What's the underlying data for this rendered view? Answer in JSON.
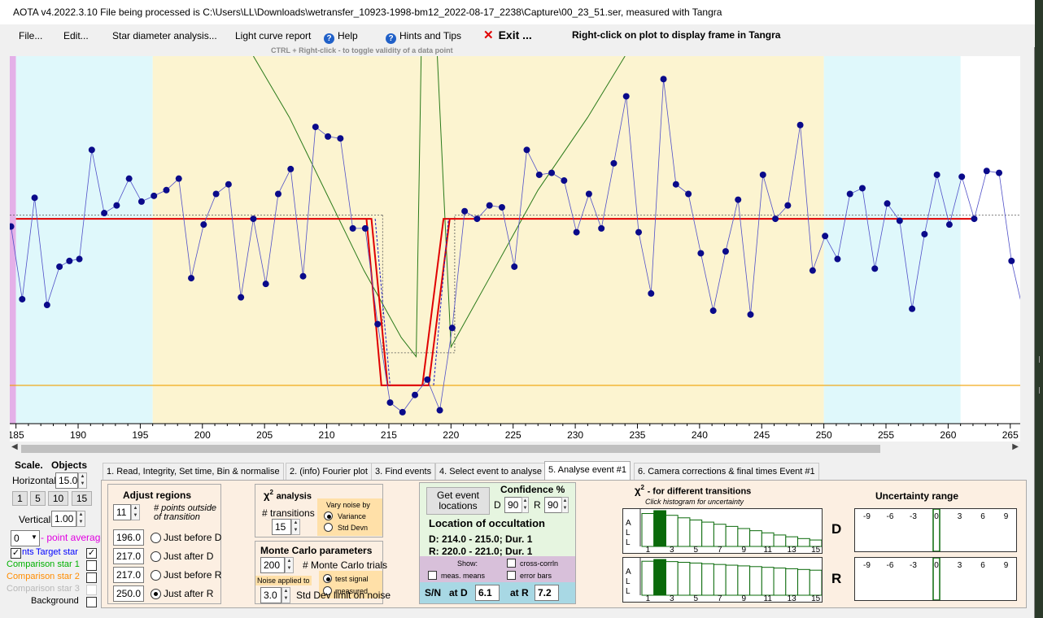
{
  "title": "AOTA v4.2022.3.10    File being processed is C:\\Users\\LL\\Downloads\\wetransfer_10923-1998-bm12_2022-08-17_2238\\Capture\\00_23_51.ser, measured with Tangra",
  "menu": {
    "file": "File...",
    "edit": "Edit...",
    "star_diameter": "Star diameter analysis...",
    "light_curve_report": "Light curve report",
    "help": "Help",
    "hints": "Hints and Tips",
    "exit": "Exit ...",
    "hint_right_click": "Right-click on plot to display frame in Tangra",
    "ctrl_hint": "CTRL + Right-click  -  to toggle validity of a data point"
  },
  "chart_data": {
    "type": "line",
    "x_ticks": [
      "185",
      "190",
      "195",
      "200",
      "205",
      "210",
      "215",
      "220",
      "225",
      "230",
      "235",
      "240",
      "245",
      "250",
      "255",
      "260",
      "265"
    ],
    "xlim": [
      184.5,
      265.8
    ],
    "regions": [
      {
        "from": 184.5,
        "to": 185.0,
        "color": "#e4b0e8"
      },
      {
        "from": 185.0,
        "to": 196.0,
        "color": "#dff8fb"
      },
      {
        "from": 196.0,
        "to": 250.0,
        "color": "#fcf4d0"
      },
      {
        "from": 250.0,
        "to": 261.0,
        "color": "#dff8fb"
      }
    ],
    "points": [
      [
        184.6,
        0.83
      ],
      [
        185.5,
        0.45
      ],
      [
        186.5,
        0.98
      ],
      [
        187.5,
        0.42
      ],
      [
        188.5,
        0.62
      ],
      [
        189.3,
        0.65
      ],
      [
        190.1,
        0.66
      ],
      [
        191.1,
        1.23
      ],
      [
        192.1,
        0.9
      ],
      [
        193.1,
        0.94
      ],
      [
        194.1,
        1.08
      ],
      [
        195.1,
        0.96
      ],
      [
        196.1,
        0.99
      ],
      [
        197.1,
        1.02
      ],
      [
        198.1,
        1.08
      ],
      [
        199.1,
        0.56
      ],
      [
        200.1,
        0.84
      ],
      [
        201.1,
        1.0
      ],
      [
        202.1,
        1.05
      ],
      [
        203.1,
        0.46
      ],
      [
        204.1,
        0.87
      ],
      [
        205.1,
        0.53
      ],
      [
        206.1,
        1.0
      ],
      [
        207.1,
        1.13
      ],
      [
        208.1,
        0.57
      ],
      [
        209.1,
        1.35
      ],
      [
        210.1,
        1.3
      ],
      [
        211.1,
        1.29
      ],
      [
        212.1,
        0.82
      ],
      [
        213.1,
        0.82
      ],
      [
        214.1,
        0.32
      ],
      [
        215.1,
        -0.09
      ],
      [
        216.1,
        -0.14
      ],
      [
        217.1,
        -0.05
      ],
      [
        218.1,
        0.03
      ],
      [
        219.1,
        -0.13
      ],
      [
        220.1,
        0.3
      ],
      [
        221.1,
        0.91
      ],
      [
        222.1,
        0.87
      ],
      [
        223.1,
        0.94
      ],
      [
        224.1,
        0.93
      ],
      [
        225.1,
        0.62
      ],
      [
        226.1,
        1.23
      ],
      [
        227.1,
        1.1
      ],
      [
        228.1,
        1.11
      ],
      [
        229.1,
        1.07
      ],
      [
        230.1,
        0.8
      ],
      [
        231.1,
        1.0
      ],
      [
        232.1,
        0.82
      ],
      [
        233.1,
        1.16
      ],
      [
        234.1,
        1.51
      ],
      [
        235.1,
        0.8
      ],
      [
        236.1,
        0.48
      ],
      [
        237.1,
        1.6
      ],
      [
        238.1,
        1.05
      ],
      [
        239.1,
        1.0
      ],
      [
        240.1,
        0.69
      ],
      [
        241.1,
        0.39
      ],
      [
        242.1,
        0.7
      ],
      [
        243.1,
        0.97
      ],
      [
        244.1,
        0.37
      ],
      [
        245.1,
        1.1
      ],
      [
        246.1,
        0.87
      ],
      [
        247.1,
        0.94
      ],
      [
        248.1,
        1.36
      ],
      [
        249.1,
        0.6
      ],
      [
        250.1,
        0.78
      ],
      [
        251.1,
        0.66
      ],
      [
        252.1,
        1.0
      ],
      [
        253.1,
        1.03
      ],
      [
        254.1,
        0.61
      ],
      [
        255.1,
        0.95
      ],
      [
        256.1,
        0.86
      ],
      [
        257.1,
        0.4
      ],
      [
        258.1,
        0.79
      ],
      [
        259.1,
        1.1
      ],
      [
        260.1,
        0.84
      ],
      [
        261.1,
        1.09
      ],
      [
        262.1,
        0.87
      ],
      [
        263.1,
        1.12
      ],
      [
        264.1,
        1.11
      ],
      [
        265.1,
        0.65
      ],
      [
        266.1,
        0.37
      ]
    ],
    "baseline": 0.87,
    "bottom_level": 0.0,
    "d_edge": 214.5,
    "r_edge": 220.5,
    "ylim": [
      -0.2,
      1.72
    ]
  },
  "tabs": [
    "1. Read, Integrity, Set time, Bin & normalise",
    "2. (info)  Fourier plot",
    "3. Find events",
    "4. Select event to analyse",
    "5. Analyse event #1",
    "6. Camera corrections & final times Event #1"
  ],
  "left": {
    "scale": "Scale.",
    "objects": "Objects",
    "horizontal": "Horizontal",
    "horizontal_value": "15.0",
    "scale_buttons": [
      "1",
      "5",
      "10",
      "15"
    ],
    "vertical": "Vertical",
    "vertical_value": "1.00",
    "avg_value": "0",
    "point_average": "- point average",
    "target_star": "Target star",
    "target_prefix": "nts",
    "comp1": "Comparison star 1",
    "comp2": "Comparison star 2",
    "comp3": "Comparison star 3",
    "background": "Background",
    "comp1_color": "#00b000",
    "comp2_color": "#ff8c00",
    "target_color": "#0000ff",
    "point_average_color": "#e000e0"
  },
  "adjust": {
    "title": "Adjust regions",
    "points_value": "11",
    "points_label": "# points outside of transition",
    "rows": [
      {
        "value": "196.0",
        "label": "Just before D"
      },
      {
        "value": "217.0",
        "label": "Just after D"
      },
      {
        "value": "217.0",
        "label": "Just before R"
      },
      {
        "value": "250.0",
        "label": "Just after R"
      }
    ]
  },
  "chi": {
    "title_sym": "χ",
    "title_exp": "2",
    "title": "analysis",
    "transitions_label": "# transitions",
    "transitions_value": "15",
    "vary_label": "Vary noise by",
    "variance": "Variance",
    "std_devn": "Std Devn"
  },
  "monte": {
    "title": "Monte Carlo parameters",
    "trials_value": "200",
    "trials_label": "# Monte Carlo trials",
    "noise_applied": "Noise applied to",
    "test_signal": "test signal",
    "measured": "measured",
    "sd_value": "3.0",
    "sd_label": "Std Dev limit on noise"
  },
  "locate": {
    "get_event": "Get event locations",
    "confidence": "Confidence %",
    "d_label": "D",
    "d_value": "90",
    "r_label": "R",
    "r_value": "90",
    "location_title": "Location of occultation",
    "d_line": "D: 214.0 - 215.0; Dur. 1",
    "r_line": "R: 220.0 - 221.0; Dur. 1",
    "show": "Show:",
    "cross_corr": "cross-corrln",
    "meas_means": "meas. means",
    "error_bars": "error bars",
    "sn_label": "S/N",
    "at_d": "at D",
    "sn_d": "6.1",
    "at_r": "at R",
    "sn_r": "7.2"
  },
  "chi_hist": {
    "title_sym": "χ",
    "title_exp": "2",
    "title": "- for different transitions",
    "subtitle": "Click histogram for uncertainty",
    "side_letters": [
      "A",
      "L",
      "L"
    ],
    "labels": [
      "1",
      "3",
      "5",
      "7",
      "9",
      "11",
      "13",
      "15"
    ],
    "d_bars": [
      0.92,
      1.0,
      0.87,
      0.8,
      0.74,
      0.68,
      0.62,
      0.56,
      0.5,
      0.44,
      0.38,
      0.32,
      0.27,
      0.22,
      0.18
    ],
    "r_bars": [
      0.95,
      1.0,
      0.94,
      0.92,
      0.9,
      0.88,
      0.86,
      0.84,
      0.82,
      0.8,
      0.78,
      0.76,
      0.74,
      0.72,
      0.7
    ],
    "d_label": "D",
    "r_label": "R"
  },
  "uncertainty": {
    "title": "Uncertainty range",
    "ticks": [
      "-9",
      "-6",
      "-3",
      "0",
      "3",
      "6",
      "9"
    ]
  }
}
